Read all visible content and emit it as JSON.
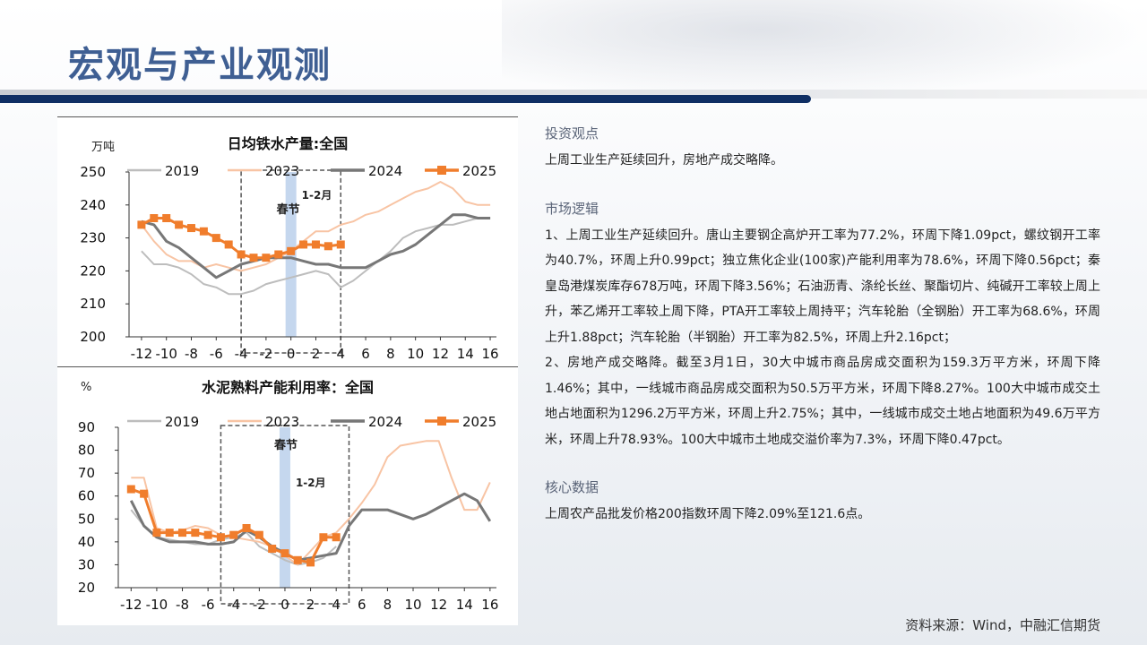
{
  "page": {
    "title": "宏观与产业观测",
    "source": "资料来源：Wind，中融汇信期货"
  },
  "sections": {
    "view": {
      "heading": "投资观点",
      "text": "上周工业生产延续回升，房地产成交略降。"
    },
    "logic": {
      "heading": "市场逻辑",
      "text": "1、上周工业生产延续回升。唐山主要钢企高炉开工率为77.2%，环周下降1.09pct，螺纹钢开工率为40.7%，环周上升0.99pct；独立焦化企业(100家)产能利用率为78.6%，环周下降0.56pct；秦皇岛港煤炭库存678万吨，环周下降3.56%；石油沥青、涤纶长丝、聚酯切片、纯碱开工率较上周上升，苯乙烯开工率较上周下降，PTA开工率较上周持平；汽车轮胎（全钢胎）开工率为68.6%，环周上升1.88pct；汽车轮胎（半钢胎）开工率为82.5%，环周上升2.16pct；",
      "text2": "2、房地产成交略降。截至3月1日，30大中城市商品房成交面积为159.3万平方米，环周下降1.46%；其中，一线城市商品房成交面积为50.5万平方米，环周下降8.27%。100大中城市成交土地占地面积为1296.2万平方米，环周上升2.75%；其中，一线城市成交土地占地面积为49.6万平方米，环周上升78.93%。100大中城市土地成交溢价率为7.3%，环周下降0.47pct。"
    },
    "core": {
      "heading": "核心数据",
      "text": "上周农产品批发价格200指数环周下降2.09%至121.6点。"
    }
  },
  "chart_data": [
    {
      "type": "line",
      "title": "日均铁水产量:全国",
      "ylabel": "万吨",
      "ylim": [
        200,
        250
      ],
      "yticks": [
        200,
        210,
        220,
        230,
        240,
        250
      ],
      "xlim": [
        -13,
        16.5
      ],
      "xticks": [
        -12,
        -10,
        -8,
        -6,
        -4,
        -2,
        0,
        2,
        4,
        6,
        8,
        10,
        12,
        14,
        16
      ],
      "xtick_labels": [
        "-12",
        "-10",
        "-8",
        "-6",
        "-4",
        "-2",
        "0",
        "2",
        "4",
        "6",
        "8",
        "10",
        "12",
        "14",
        "16"
      ],
      "grid": false,
      "legend_position": "top",
      "annotations": {
        "festival": "春节",
        "period": "1-2月",
        "period_range": [
          -4,
          4
        ],
        "festival_x": 0
      },
      "series": [
        {
          "name": "2019",
          "color": "#bdbdbd",
          "width": 2,
          "x": [
            -12,
            -11,
            -10,
            -9,
            -8,
            -7,
            -6,
            -5,
            -4,
            -3,
            -2,
            -1,
            0,
            1,
            2,
            3,
            4,
            5,
            6,
            7,
            8,
            9,
            10,
            11,
            12,
            13,
            14,
            15,
            16
          ],
          "y": [
            226,
            222,
            222,
            221,
            219,
            216,
            215,
            213,
            213,
            214,
            216,
            217,
            218,
            219,
            220,
            219,
            215,
            217,
            220,
            223,
            226,
            230,
            232,
            233,
            234,
            234,
            235,
            236,
            236
          ]
        },
        {
          "name": "2023",
          "color": "#f8c4a4",
          "width": 2,
          "x": [
            -12,
            -11,
            -10,
            -9,
            -8,
            -7,
            -6,
            -5,
            -4,
            -3,
            -2,
            -1,
            0,
            1,
            2,
            3,
            4,
            5,
            6,
            7,
            8,
            9,
            10,
            11,
            12,
            13,
            14,
            15,
            16
          ],
          "y": [
            234,
            229,
            225,
            223,
            223,
            221,
            222,
            221,
            220,
            221,
            222,
            224,
            226,
            229,
            232,
            232,
            234,
            235,
            237,
            238,
            240,
            242,
            244,
            245,
            247,
            245,
            241,
            240,
            240
          ]
        },
        {
          "name": "2024",
          "color": "#777777",
          "width": 3,
          "x": [
            -12,
            -11,
            -10,
            -9,
            -8,
            -7,
            -6,
            -5,
            -4,
            -3,
            -2,
            -1,
            0,
            1,
            2,
            3,
            4,
            5,
            6,
            7,
            8,
            9,
            10,
            11,
            12,
            13,
            14,
            15,
            16
          ],
          "y": [
            235,
            234,
            229,
            227,
            224,
            221,
            218,
            220,
            222,
            223,
            224,
            224,
            224,
            223,
            222,
            222,
            221,
            221,
            221,
            223,
            225,
            226,
            228,
            231,
            234,
            237,
            237,
            236,
            236
          ]
        },
        {
          "name": "2025",
          "color": "#f07d2c",
          "width": 3,
          "marker": "square",
          "x": [
            -12,
            -11,
            -10,
            -9,
            -8,
            -7,
            -6,
            -5,
            -4,
            -3,
            -2,
            -1,
            0,
            1,
            2,
            3,
            4
          ],
          "y": [
            234,
            236,
            236,
            234,
            233,
            232,
            230,
            228,
            225,
            224,
            224,
            225,
            226,
            228,
            228,
            227.5,
            228
          ]
        }
      ]
    },
    {
      "type": "line",
      "title": "水泥熟料产能利用率：全国",
      "ylabel": "%",
      "ylim": [
        20,
        90
      ],
      "yticks": [
        20,
        30,
        40,
        50,
        60,
        70,
        80,
        90
      ],
      "xlim": [
        -13,
        16.5
      ],
      "xticks": [
        -12,
        -10,
        -8,
        -6,
        -4,
        -2,
        0,
        2,
        4,
        6,
        8,
        10,
        12,
        14,
        16
      ],
      "xtick_labels": [
        "-12",
        "-10",
        "-8",
        "-6",
        "-4",
        "-2",
        "0",
        "2",
        "4",
        "6",
        "8",
        "10",
        "12",
        "14",
        "16"
      ],
      "grid": false,
      "legend_position": "top",
      "annotations": {
        "festival": "春节",
        "period": "1-2月",
        "period_range": [
          -5,
          5
        ],
        "festival_x": 0
      },
      "series": [
        {
          "name": "2019",
          "color": "#bdbdbd",
          "width": 2,
          "x": [
            -12,
            -11,
            -10,
            -9,
            -8,
            -7,
            -6,
            -5,
            -4,
            -3,
            -2,
            -1,
            0,
            1,
            2,
            3,
            4
          ],
          "y": [
            54,
            47,
            42,
            41,
            40,
            39,
            39,
            41,
            42,
            44,
            38,
            35,
            32,
            30,
            31,
            33,
            38
          ]
        },
        {
          "name": "2023",
          "color": "#f8c4a4",
          "width": 2,
          "x": [
            -12,
            -11,
            -10,
            -9,
            -8,
            -7,
            -6,
            -5,
            -4,
            -3,
            -2,
            -1,
            0,
            1,
            2,
            3,
            4,
            5,
            6,
            7,
            8,
            9,
            10,
            11,
            12,
            13,
            14,
            15,
            16
          ],
          "y": [
            68,
            68,
            46,
            44,
            45,
            47,
            46,
            43,
            42,
            41,
            40,
            38,
            34,
            30,
            36,
            42,
            44,
            50,
            57,
            65,
            77,
            82,
            83,
            84,
            84,
            68,
            54,
            54,
            66
          ]
        },
        {
          "name": "2024",
          "color": "#777777",
          "width": 3,
          "x": [
            -12,
            -11,
            -10,
            -9,
            -8,
            -7,
            -6,
            -5,
            -4,
            -3,
            -2,
            -1,
            0,
            1,
            2,
            3,
            4,
            5,
            6,
            7,
            8,
            9,
            10,
            11,
            12,
            13,
            14,
            15,
            16
          ],
          "y": [
            58,
            47,
            42,
            40,
            40,
            40,
            39,
            39,
            40,
            45,
            42,
            38,
            35,
            32,
            33,
            34,
            35,
            47,
            54,
            54,
            54,
            52,
            50,
            52,
            55,
            58,
            61,
            58,
            49
          ]
        },
        {
          "name": "2025",
          "color": "#f07d2c",
          "width": 3,
          "marker": "square",
          "x": [
            -12,
            -11,
            -10,
            -9,
            -8,
            -7,
            -6,
            -5,
            -4,
            -3,
            -2,
            -1,
            0,
            1,
            2,
            3,
            4
          ],
          "y": [
            63,
            61,
            44,
            44,
            44,
            44,
            43,
            42,
            43,
            46,
            43,
            37,
            35,
            32,
            31,
            42,
            42
          ]
        }
      ]
    }
  ]
}
